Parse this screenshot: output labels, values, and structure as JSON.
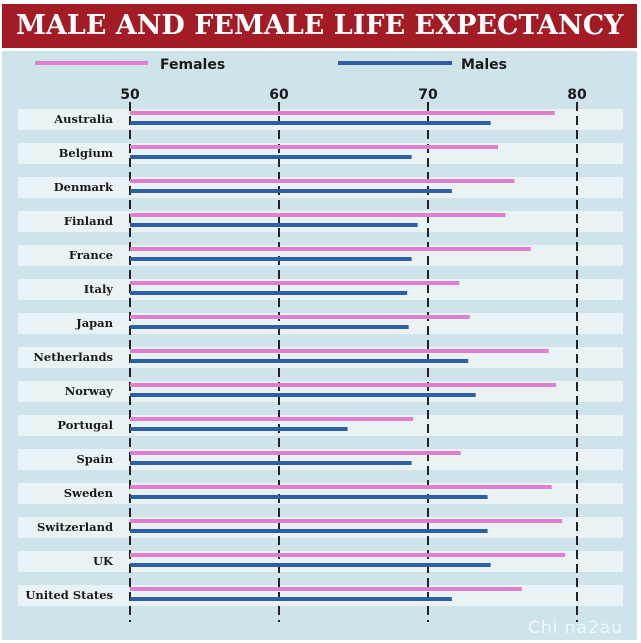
{
  "chart_data": {
    "type": "bar",
    "orientation": "horizontal",
    "title": "MALE AND FEMALE LIFE EXPECTANCY",
    "categories": [
      "Australia",
      "Belgium",
      "Denmark",
      "Finland",
      "France",
      "Italy",
      "Japan",
      "Netherlands",
      "Norway",
      "Portugal",
      "Spain",
      "Sweden",
      "Switzerland",
      "UK",
      "United States"
    ],
    "series": [
      {
        "name": "Females",
        "color": "#e07fcf",
        "values": [
          78.5,
          74.7,
          75.8,
          75.2,
          76.9,
          72.1,
          72.8,
          78.1,
          78.6,
          69.0,
          72.2,
          78.3,
          79.0,
          79.2,
          76.3
        ]
      },
      {
        "name": "Males",
        "color": "#2e5ea8",
        "values": [
          74.2,
          68.9,
          71.6,
          69.3,
          68.9,
          68.6,
          68.7,
          72.7,
          73.2,
          64.6,
          68.9,
          74.0,
          74.0,
          74.2,
          71.6
        ]
      }
    ],
    "xticks": [
      50,
      60,
      70,
      80
    ],
    "xlim": [
      50,
      82
    ],
    "grid": "dashed vertical lines at ticks",
    "legend": "top"
  },
  "watermark": "Chi na2au",
  "colors": {
    "title_bg": "#a31b24",
    "panel_bg": "#cfe3ea",
    "row_band": "#e9f2f5",
    "gridline": "#222222"
  }
}
